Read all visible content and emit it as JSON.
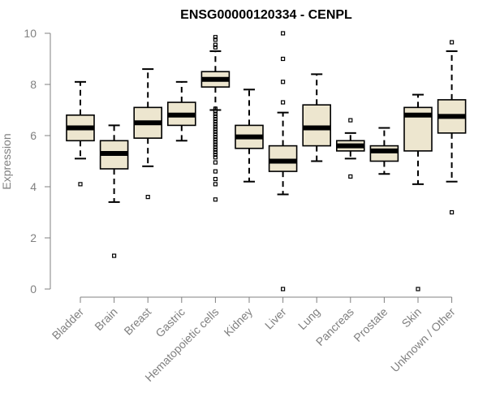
{
  "chart_data": {
    "type": "box",
    "title": "ENSG00000120334 - CENPL",
    "xlabel": "",
    "ylabel": "Expression",
    "ylim": [
      0,
      10
    ],
    "yticks": [
      0,
      2,
      4,
      6,
      8,
      10
    ],
    "grid": false,
    "legend": "none",
    "colors": {
      "box_fill": "#ede6cf",
      "median": "#000000",
      "stroke": "#000000",
      "axis": "#808080"
    },
    "categories": [
      "Bladder",
      "Brain",
      "Breast",
      "Gastric",
      "Hematopoietic cells",
      "Kidney",
      "Liver",
      "Lung",
      "Pancreas",
      "Prostate",
      "Skin",
      "Unknown / Other"
    ],
    "boxes": [
      {
        "category": "Bladder",
        "whisker_low": 5.1,
        "q1": 5.8,
        "median": 6.3,
        "q3": 6.8,
        "whisker_high": 8.1,
        "outliers": [
          4.1
        ]
      },
      {
        "category": "Brain",
        "whisker_low": 3.4,
        "q1": 4.7,
        "median": 5.3,
        "q3": 5.8,
        "whisker_high": 6.4,
        "outliers": [
          1.3
        ]
      },
      {
        "category": "Breast",
        "whisker_low": 4.8,
        "q1": 5.9,
        "median": 6.5,
        "q3": 7.1,
        "whisker_high": 8.6,
        "outliers": [
          3.6
        ]
      },
      {
        "category": "Gastric",
        "whisker_low": 5.8,
        "q1": 6.4,
        "median": 6.8,
        "q3": 7.3,
        "whisker_high": 8.1,
        "outliers": []
      },
      {
        "category": "Hematopoietic cells",
        "whisker_low": 7.0,
        "q1": 7.9,
        "median": 8.2,
        "q3": 8.5,
        "whisker_high": 9.3,
        "outliers": [
          9.85,
          9.75,
          9.55,
          9.45,
          7.05,
          6.95,
          6.85,
          6.75,
          6.65,
          6.55,
          6.45,
          6.35,
          6.25,
          6.15,
          6.05,
          5.95,
          5.85,
          5.75,
          5.65,
          5.55,
          5.45,
          5.35,
          5.25,
          5.15,
          4.95,
          4.6,
          4.3,
          4.1,
          3.5
        ]
      },
      {
        "category": "Kidney",
        "whisker_low": 4.2,
        "q1": 5.5,
        "median": 5.95,
        "q3": 6.4,
        "whisker_high": 7.8,
        "outliers": []
      },
      {
        "category": "Liver",
        "whisker_low": 3.7,
        "q1": 4.6,
        "median": 5.0,
        "q3": 5.6,
        "whisker_high": 6.9,
        "outliers": [
          10.0,
          9.0,
          8.1,
          7.3,
          0.0
        ]
      },
      {
        "category": "Lung",
        "whisker_low": 5.0,
        "q1": 5.6,
        "median": 6.3,
        "q3": 7.2,
        "whisker_high": 8.4,
        "outliers": []
      },
      {
        "category": "Pancreas",
        "whisker_low": 5.1,
        "q1": 5.4,
        "median": 5.6,
        "q3": 5.8,
        "whisker_high": 6.1,
        "outliers": [
          6.6,
          4.4
        ]
      },
      {
        "category": "Prostate",
        "whisker_low": 4.5,
        "q1": 5.0,
        "median": 5.4,
        "q3": 5.6,
        "whisker_high": 6.3,
        "outliers": []
      },
      {
        "category": "Skin",
        "whisker_low": 4.1,
        "q1": 5.4,
        "median": 6.8,
        "q3": 7.1,
        "whisker_high": 7.6,
        "outliers": [
          0.0
        ]
      },
      {
        "category": "Unknown / Other",
        "whisker_low": 4.2,
        "q1": 6.1,
        "median": 6.75,
        "q3": 7.4,
        "whisker_high": 9.3,
        "outliers": [
          9.65,
          3.0
        ]
      }
    ]
  }
}
